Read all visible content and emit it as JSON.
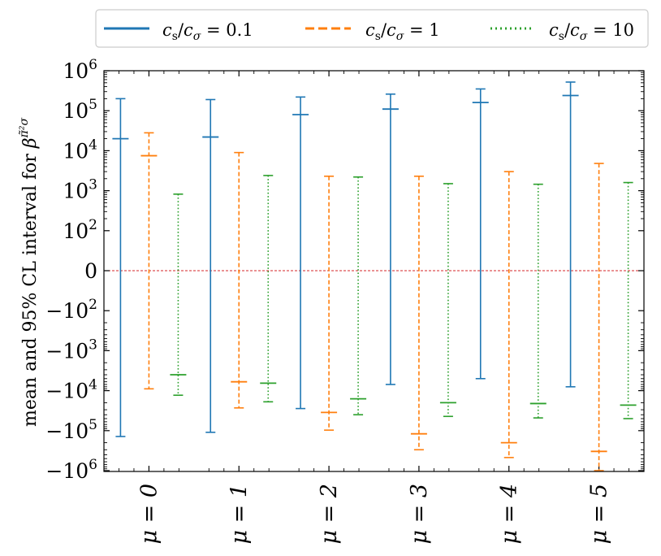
{
  "chart_data": {
    "type": "errorbar",
    "yscale": "symlog",
    "ylabel": "mean and 95% CL interval for β^{π̃²σ}",
    "ylabel_text": "mean and 95% CL interval for ",
    "ylabel_symbol": "β",
    "ylabel_super": "π̃²σ",
    "ylim": [
      -1000000,
      1000000
    ],
    "yticks": [
      {
        "value": 1000000,
        "base": "10",
        "exp": "6",
        "sign": ""
      },
      {
        "value": 100000,
        "base": "10",
        "exp": "5",
        "sign": ""
      },
      {
        "value": 10000,
        "base": "10",
        "exp": "4",
        "sign": ""
      },
      {
        "value": 1000,
        "base": "10",
        "exp": "3",
        "sign": ""
      },
      {
        "value": 100,
        "base": "10",
        "exp": "2",
        "sign": ""
      },
      {
        "value": 0,
        "base": "0",
        "exp": "",
        "sign": ""
      },
      {
        "value": -100,
        "base": "10",
        "exp": "2",
        "sign": "−"
      },
      {
        "value": -1000,
        "base": "10",
        "exp": "3",
        "sign": "−"
      },
      {
        "value": -10000,
        "base": "10",
        "exp": "4",
        "sign": "−"
      },
      {
        "value": -100000,
        "base": "10",
        "exp": "5",
        "sign": "−"
      },
      {
        "value": -1000000,
        "base": "10",
        "exp": "6",
        "sign": "−"
      }
    ],
    "categories": [
      "μ = 0",
      "μ = 1",
      "μ = 2",
      "μ = 3",
      "μ = 4",
      "μ = 5"
    ],
    "zero_line": {
      "value": 0,
      "color": "#d62728",
      "style": "dashed"
    },
    "series": [
      {
        "name": "c_s/c_σ = 0.1",
        "legend_lhs": "c",
        "legend_lhs_sub": "s",
        "legend_den": "c",
        "legend_den_sub": "σ",
        "legend_rhs": " = 0.1",
        "color": "#1f77b4",
        "style": "solid",
        "mean": [
          20000,
          22000,
          80000,
          110000,
          160000,
          240000
        ],
        "lower": [
          -140000,
          -110000,
          -28000,
          -7000,
          -5000,
          -8000
        ],
        "upper": [
          200000,
          190000,
          220000,
          260000,
          350000,
          520000
        ]
      },
      {
        "name": "c_s/c_σ = 1",
        "legend_lhs": "c",
        "legend_lhs_sub": "s",
        "legend_den": "c",
        "legend_den_sub": "σ",
        "legend_rhs": " = 1",
        "color": "#ff7f0e",
        "style": "dashed",
        "mean": [
          7500,
          -6000,
          -35000,
          -120000,
          -200000,
          -330000
        ],
        "lower": [
          -9000,
          -27000,
          -97000,
          -300000,
          -470000,
          -1000000
        ],
        "upper": [
          28000,
          9000,
          2300,
          2300,
          3000,
          4800
        ]
      },
      {
        "name": "c_s/c_σ = 10",
        "legend_lhs": "c",
        "legend_lhs_sub": "s",
        "legend_den": "c",
        "legend_den_sub": "σ",
        "legend_rhs": " = 10",
        "color": "#2ca02c",
        "style": "dotted",
        "mean": [
          -4000,
          -6500,
          -16000,
          -20000,
          -21000,
          -23000
        ],
        "lower": [
          -13000,
          -19000,
          -40000,
          -44000,
          -48000,
          -50000
        ],
        "upper": [
          820,
          2400,
          2200,
          1500,
          1450,
          1600
        ]
      }
    ]
  }
}
